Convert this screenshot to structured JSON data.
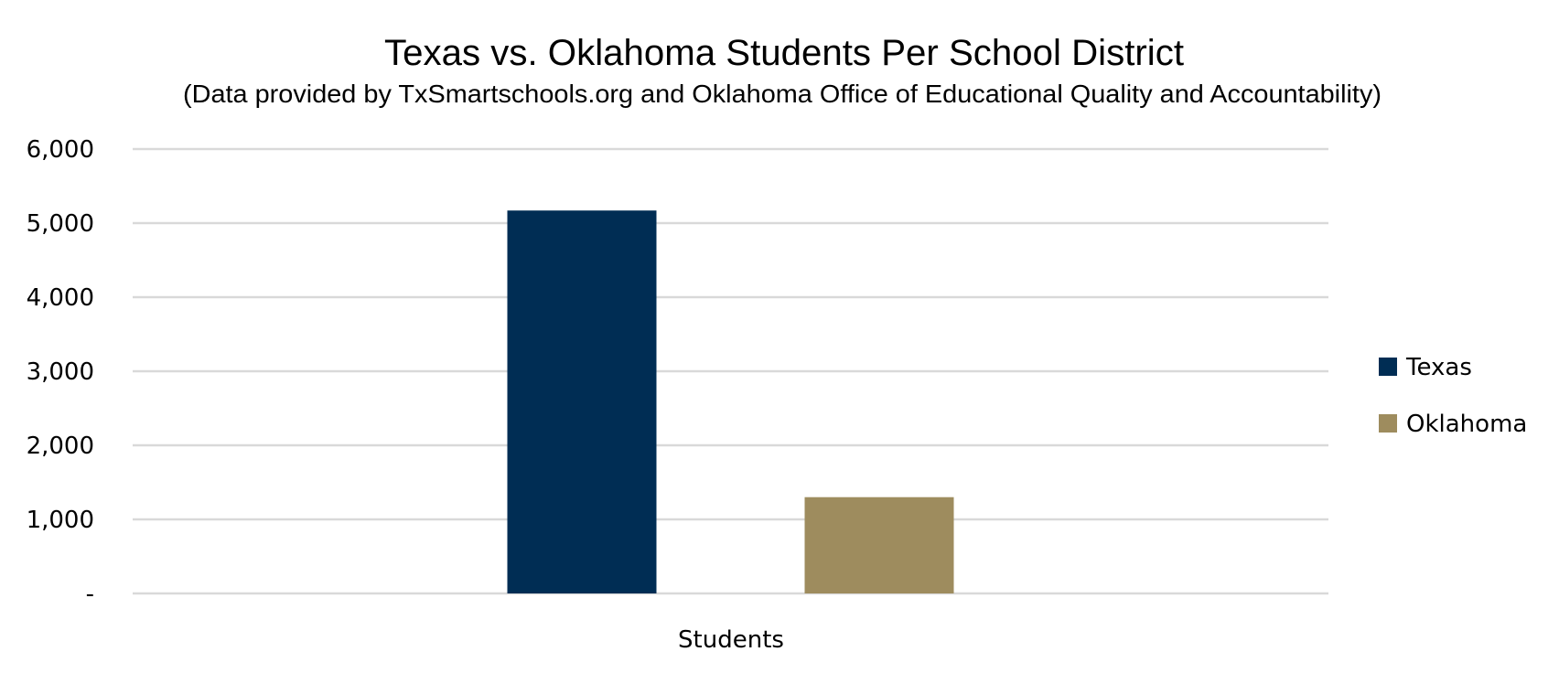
{
  "chart_data": {
    "type": "bar",
    "title": "Texas vs. Oklahoma Students Per School District",
    "subtitle": "(Data provided by TxSmartschools.org and Oklahoma Office of Educational Quality and Accountability)",
    "categories": [
      "Students"
    ],
    "series": [
      {
        "name": "Texas",
        "values": [
          5170
        ],
        "color": "#002D54"
      },
      {
        "name": "Oklahoma",
        "values": [
          1300
        ],
        "color": "#9E8C5E"
      }
    ],
    "xlabel": "",
    "ylabel": "",
    "ylim": [
      0,
      6000
    ],
    "yticks": [
      0,
      1000,
      2000,
      3000,
      4000,
      5000,
      6000
    ],
    "ytick_labels": [
      "-",
      "1,000",
      "2,000",
      "3,000",
      "4,000",
      "5,000",
      "6,000"
    ],
    "grid": true,
    "legend_position": "right"
  }
}
